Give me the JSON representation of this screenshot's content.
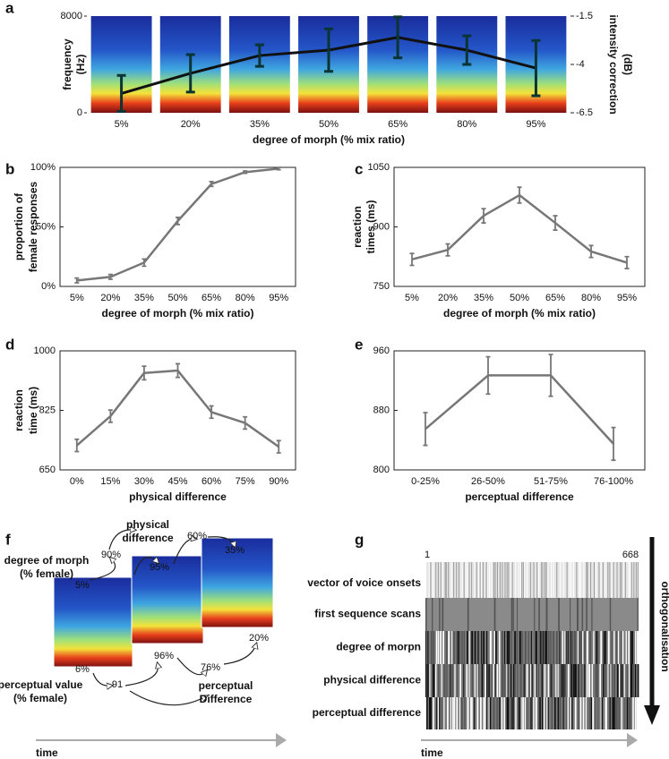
{
  "chart_data": [
    {
      "type": "line",
      "panel": "a",
      "ylabel": [
        "frequency",
        "(Hz)"
      ],
      "y2label": [
        "intensity correction",
        "(dB)"
      ],
      "xlabel": "degree of morph (% mix ratio)",
      "categories": [
        "5%",
        "20%",
        "35%",
        "50%",
        "65%",
        "80%",
        "95%"
      ],
      "ylim": [
        0,
        8000
      ],
      "yticks": [
        0,
        8000
      ],
      "y2lim": [
        -6.5,
        -1.5
      ],
      "y2ticks": [
        -1.5,
        -4,
        -6.5
      ],
      "series": [
        {
          "axis": "y2",
          "color": "#111111",
          "error_color": "#0b3434",
          "values": [
            -5.5,
            -4.46,
            -3.54,
            -3.26,
            -2.6,
            -3.26,
            -4.19
          ],
          "errors": [
            0.93,
            0.97,
            0.56,
            1.1,
            1.06,
            0.74,
            1.43
          ]
        }
      ]
    },
    {
      "type": "line",
      "panel": "b",
      "ylabel": [
        "proportion of",
        "female responses"
      ],
      "xlabel": "degree of morph (% mix ratio)",
      "categories": [
        "5%",
        "20%",
        "35%",
        "50%",
        "65%",
        "80%",
        "95%"
      ],
      "ylim": [
        0,
        100
      ],
      "yticks": [
        {
          "value": 0,
          "label": "0%"
        },
        {
          "value": 50,
          "label": "50%"
        },
        {
          "value": 100,
          "label": "100%"
        }
      ],
      "series": [
        {
          "color": "#777777",
          "values": [
            5,
            8,
            20,
            55,
            86,
            96,
            99
          ],
          "errors": [
            2,
            2,
            3,
            3,
            2,
            1,
            1
          ]
        }
      ]
    },
    {
      "type": "line",
      "panel": "c",
      "ylabel": [
        "reaction",
        "times (ms)"
      ],
      "xlabel": "degree of morph (% mix ratio)",
      "categories": [
        "5%",
        "20%",
        "35%",
        "50%",
        "65%",
        "80%",
        "95%"
      ],
      "ylim": [
        750,
        1050
      ],
      "yticks": [
        750,
        900,
        1050
      ],
      "series": [
        {
          "color": "#777777",
          "values": [
            818,
            842,
            928,
            980,
            910,
            838,
            810
          ],
          "errors": [
            15,
            15,
            18,
            20,
            18,
            15,
            15
          ]
        }
      ]
    },
    {
      "type": "line",
      "panel": "d",
      "ylabel": [
        "reaction",
        "time (ms)"
      ],
      "xlabel": "physical difference",
      "categories": [
        "0%",
        "15%",
        "30%",
        "45%",
        "60%",
        "75%",
        "90%"
      ],
      "ylim": [
        650,
        1000
      ],
      "yticks": [
        650,
        825,
        1000
      ],
      "series": [
        {
          "color": "#777777",
          "values": [
            722,
            808,
            935,
            942,
            820,
            788,
            718
          ],
          "errors": [
            18,
            18,
            20,
            20,
            18,
            18,
            18
          ]
        }
      ]
    },
    {
      "type": "line",
      "panel": "e",
      "xlabel": "perceptual difference",
      "categories": [
        "0-25%",
        "26-50%",
        "51-75%",
        "76-100%"
      ],
      "ylim": [
        800,
        960
      ],
      "yticks": [
        800,
        880,
        960
      ],
      "series": [
        {
          "color": "#777777",
          "values": [
            855,
            927,
            927,
            835
          ],
          "errors": [
            22,
            25,
            28,
            22
          ]
        }
      ]
    }
  ],
  "diagrams": [
    {
      "panel": "f",
      "texts": [
        "physical",
        "difference",
        "degree of morph",
        "(% female)",
        "90%",
        "5%",
        "95%",
        "60%",
        "35%",
        "6%",
        "96%",
        "20%",
        "76%",
        "91",
        "perceptual value",
        "(% female)",
        "perceptual",
        "Difference"
      ],
      "time_label": "time"
    },
    {
      "panel": "g",
      "range": [
        1,
        668
      ],
      "rows": [
        "vector of voice onsets",
        "first sequence scans",
        "degree of morpn",
        "physical difference",
        "perceptual difference"
      ],
      "arrow_label": "orthogonalisation",
      "time_label": "time"
    }
  ]
}
